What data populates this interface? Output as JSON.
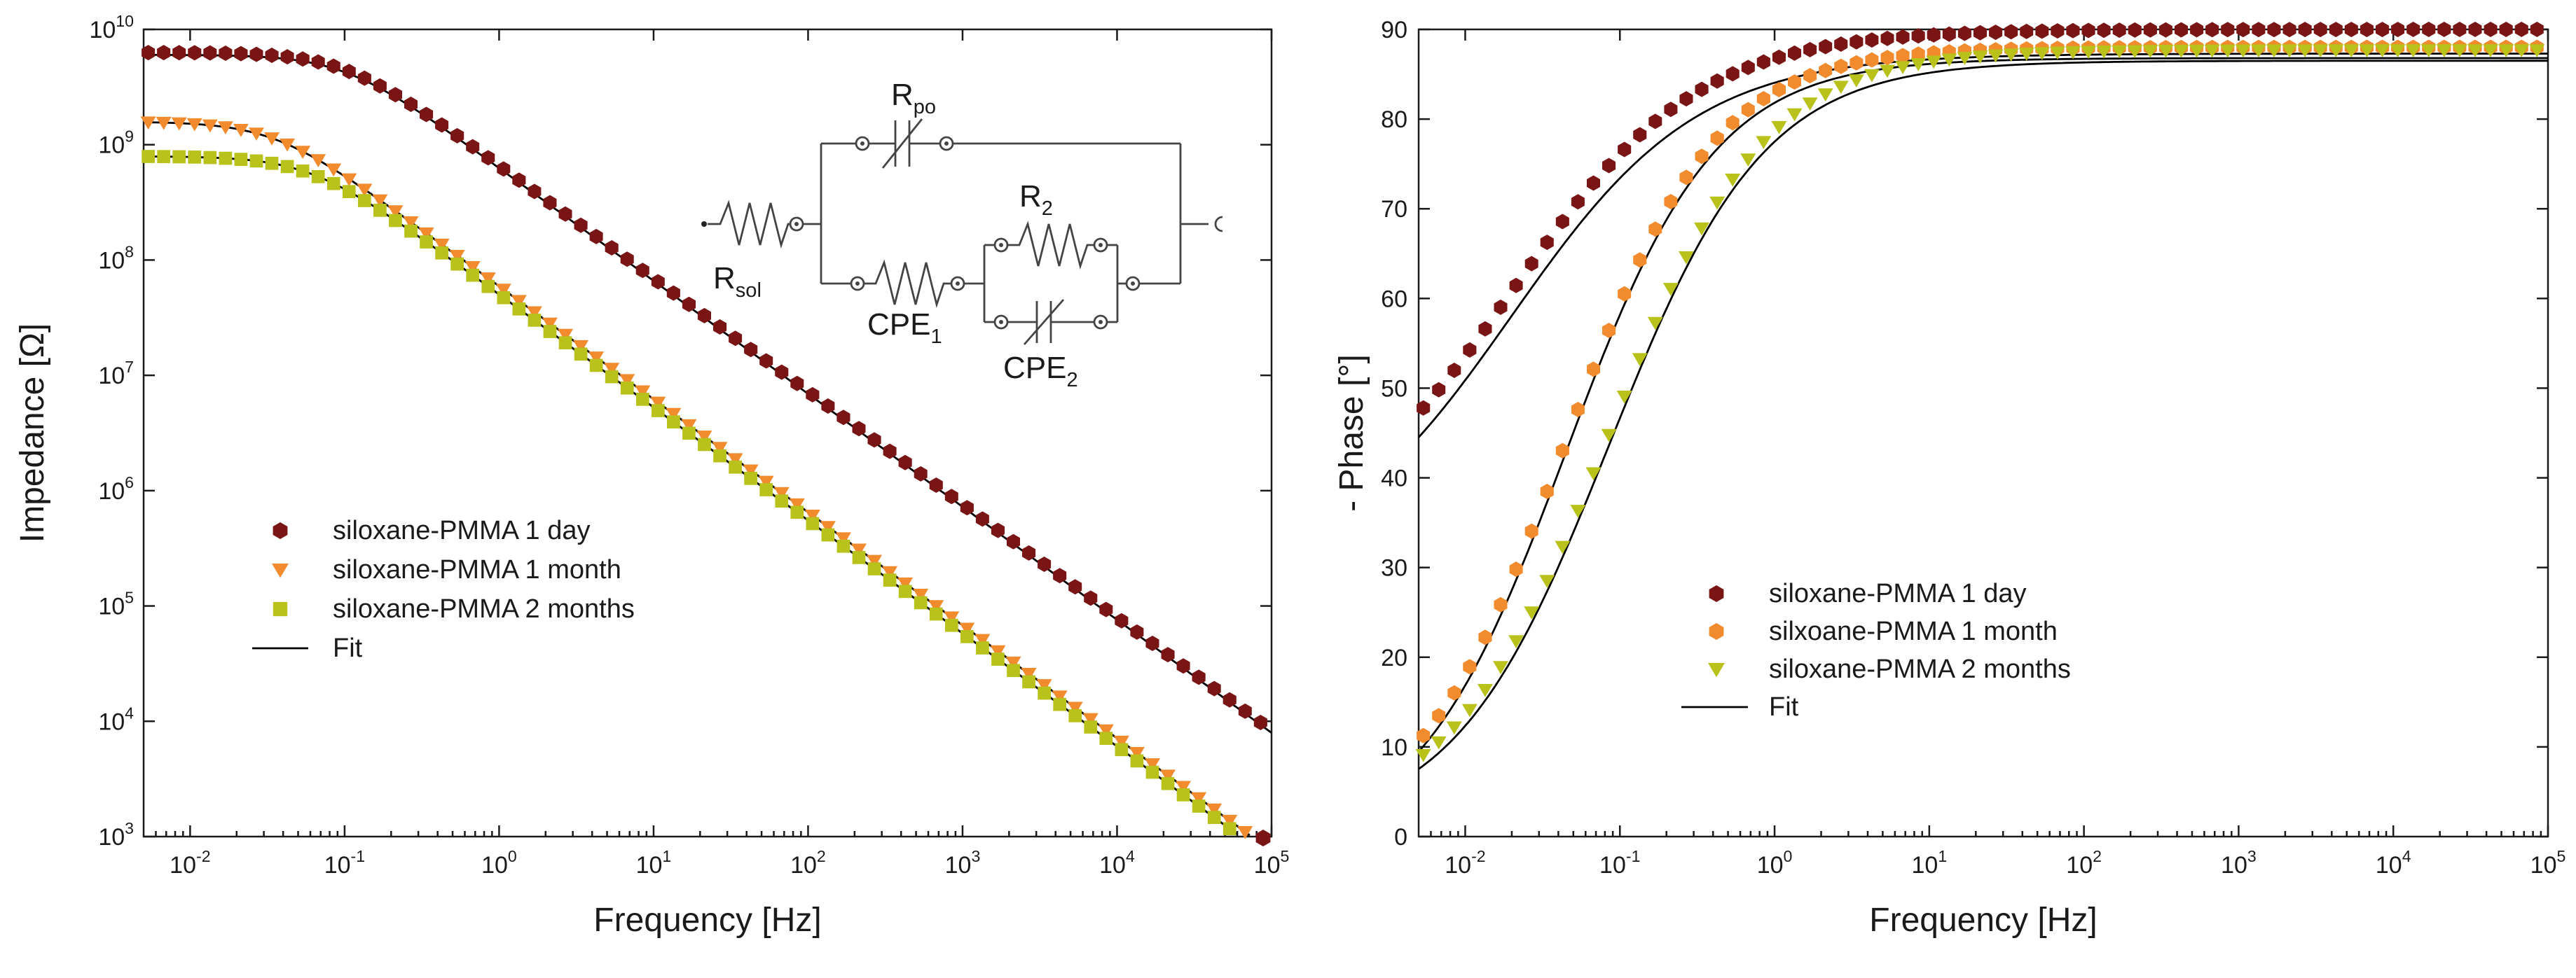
{
  "chart_data": [
    {
      "type": "scatter",
      "xscale": "log",
      "yscale": "log",
      "xlabel": "Frequency [Hz]",
      "ylabel": "Impedance [Ω]",
      "xlim": [
        0.005,
        100000
      ],
      "ylim": [
        1000,
        10000000000
      ],
      "xticks": [
        {
          "exp": -2,
          "label": "10",
          "sup": "-2"
        },
        {
          "exp": -1,
          "label": "10",
          "sup": "-1"
        },
        {
          "exp": 0,
          "label": "10",
          "sup": "0"
        },
        {
          "exp": 1,
          "label": "10",
          "sup": "1"
        },
        {
          "exp": 2,
          "label": "10",
          "sup": "2"
        },
        {
          "exp": 3,
          "label": "10",
          "sup": "3"
        },
        {
          "exp": 4,
          "label": "10",
          "sup": "4"
        },
        {
          "exp": 5,
          "label": "10",
          "sup": "5"
        }
      ],
      "yticks": [
        {
          "exp": 3,
          "label": "10",
          "sup": "3"
        },
        {
          "exp": 4,
          "label": "10",
          "sup": "4"
        },
        {
          "exp": 5,
          "label": "10",
          "sup": "5"
        },
        {
          "exp": 6,
          "label": "10",
          "sup": "6"
        },
        {
          "exp": 7,
          "label": "10",
          "sup": "7"
        },
        {
          "exp": 8,
          "label": "10",
          "sup": "8"
        },
        {
          "exp": 9,
          "label": "10",
          "sup": "9"
        },
        {
          "exp": 10,
          "label": "10",
          "sup": "10"
        }
      ],
      "legend_position": "center-left",
      "series": [
        {
          "name": "siloxane-PMMA 1 day",
          "marker": "hexagon",
          "color": "#7a1515",
          "rc": 0.1,
          "logRmax": 9.78
        },
        {
          "name": "siloxane-PMMA 1 month",
          "marker": "triangle-down",
          "color": "#f28a2e",
          "rc": 0.035,
          "logRmax": 9.2
        },
        {
          "name": "siloxane-PMMA 2 months",
          "marker": "square",
          "color": "#b8c21a",
          "rc": 0.06,
          "logRmax": 8.9
        },
        {
          "name": "Fit",
          "marker": "line",
          "color": "#000000"
        }
      ],
      "circuit": {
        "r_sol": {
          "main": "R",
          "sub": "sol"
        },
        "r_po": {
          "main": "R",
          "sub": "po"
        },
        "r_2": {
          "main": "R",
          "sub": "2"
        },
        "cpe_1": {
          "main": "CPE",
          "sub": "1"
        },
        "cpe_2": {
          "main": "CPE",
          "sub": "2"
        }
      }
    },
    {
      "type": "scatter",
      "xscale": "log",
      "xlabel": "Frequency [Hz]",
      "ylabel": "- Phase [°]",
      "xlim": [
        0.005,
        100000
      ],
      "ylim": [
        0,
        90
      ],
      "xticks": [
        {
          "exp": -2,
          "label": "10",
          "sup": "-2"
        },
        {
          "exp": -1,
          "label": "10",
          "sup": "-1"
        },
        {
          "exp": 0,
          "label": "10",
          "sup": "0"
        },
        {
          "exp": 1,
          "label": "10",
          "sup": "1"
        },
        {
          "exp": 2,
          "label": "10",
          "sup": "2"
        },
        {
          "exp": 3,
          "label": "10",
          "sup": "3"
        },
        {
          "exp": 4,
          "label": "10",
          "sup": "4"
        },
        {
          "exp": 5,
          "label": "10",
          "sup": "5"
        }
      ],
      "yticks": [
        0,
        10,
        20,
        30,
        40,
        50,
        60,
        70,
        80,
        90
      ],
      "legend_position": "center",
      "series": [
        {
          "name": "siloxane-PMMA 1 day",
          "marker": "hexagon",
          "color": "#7a1515",
          "lmid": -1.7,
          "w": 0.6,
          "hi": 88.5,
          "lo": 30
        },
        {
          "name": "silxoane-PMMA 1 month",
          "marker": "hexagon",
          "color": "#f28a2e",
          "lmid": -1.35,
          "w": 0.48,
          "hi": 88,
          "lo": 0
        },
        {
          "name": "siloxane-PMMA 2 months",
          "marker": "triangle-down",
          "color": "#b8c21a",
          "lmid": -1.07,
          "w": 0.5,
          "hi": 87.7,
          "lo": 2
        },
        {
          "name": "Fit",
          "marker": "line",
          "color": "#000000"
        }
      ]
    }
  ]
}
